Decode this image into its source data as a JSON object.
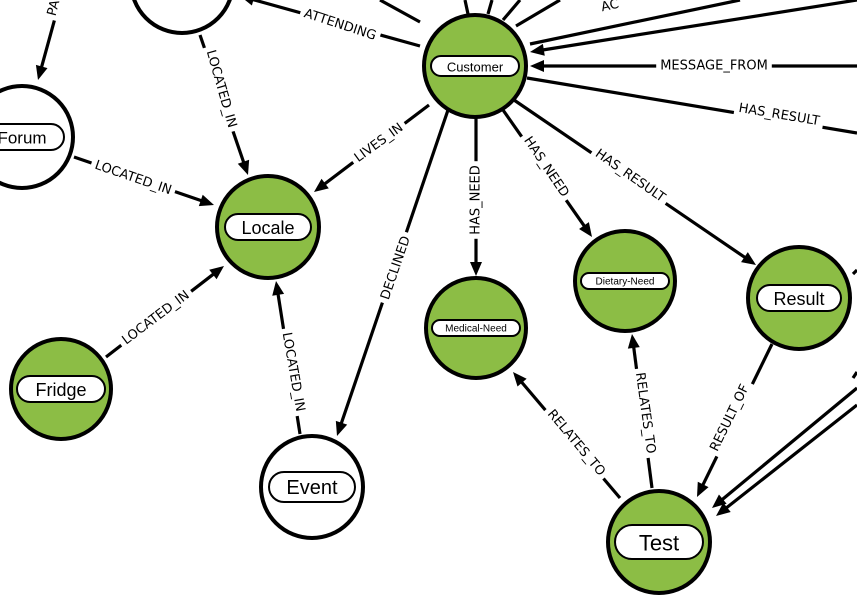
{
  "colors": {
    "green": "#8cbd45",
    "white": "#ffffff",
    "stroke": "#000000"
  },
  "nodes": [
    {
      "id": "customer",
      "label": "Customer",
      "fill": "green"
    },
    {
      "id": "locale",
      "label": "Locale",
      "fill": "green"
    },
    {
      "id": "forum",
      "label": "Forum",
      "fill": "white"
    },
    {
      "id": "fridge",
      "label": "Fridge",
      "fill": "green"
    },
    {
      "id": "event",
      "label": "Event",
      "fill": "white"
    },
    {
      "id": "medical_need",
      "label": "Medical-Need",
      "fill": "green"
    },
    {
      "id": "dietary_need",
      "label": "Dietary-Need",
      "fill": "green"
    },
    {
      "id": "result",
      "label": "Result",
      "fill": "green"
    },
    {
      "id": "test",
      "label": "Test",
      "fill": "green"
    },
    {
      "id": "top_node",
      "label": "",
      "fill": "white"
    }
  ],
  "edges": [
    {
      "id": "attending",
      "label": "ATTENDING",
      "from": "customer",
      "to": "top_node"
    },
    {
      "id": "lives_in",
      "label": "LIVES_IN",
      "from": "customer",
      "to": "locale"
    },
    {
      "id": "declined",
      "label": "DECLINED",
      "from": "customer",
      "to": "event"
    },
    {
      "id": "has_need_medical",
      "label": "HAS_NEED",
      "from": "customer",
      "to": "medical_need"
    },
    {
      "id": "has_need_dietary",
      "label": "HAS_NEED",
      "from": "customer",
      "to": "dietary_need"
    },
    {
      "id": "has_result_result",
      "label": "HAS_RESULT",
      "from": "customer",
      "to": "result"
    },
    {
      "id": "has_result_offscreen",
      "label": "HAS_RESULT",
      "from": "customer",
      "to": ""
    },
    {
      "id": "message_from",
      "label": "MESSAGE_FROM",
      "from": "",
      "to": "customer"
    },
    {
      "id": "located_in_top",
      "label": "LOCATED_IN",
      "from": "top_node",
      "to": "locale"
    },
    {
      "id": "located_in_forum",
      "label": "LOCATED_IN",
      "from": "forum",
      "to": "locale"
    },
    {
      "id": "located_in_fridge",
      "label": "LOCATED_IN",
      "from": "fridge",
      "to": "locale"
    },
    {
      "id": "located_in_event",
      "label": "LOCATED_IN",
      "from": "event",
      "to": "locale"
    },
    {
      "id": "relates_to_medical",
      "label": "RELATES_TO",
      "from": "test",
      "to": "medical_need"
    },
    {
      "id": "relates_to_dietary",
      "label": "RELATES_TO",
      "from": "test",
      "to": "dietary_need"
    },
    {
      "id": "result_of",
      "label": "RESULT_OF",
      "from": "result",
      "to": "test"
    },
    {
      "id": "partial_pa",
      "label": "PA",
      "from": "",
      "to": "forum"
    },
    {
      "id": "partial_ac",
      "label": "AC",
      "from": "customer",
      "to": ""
    }
  ]
}
